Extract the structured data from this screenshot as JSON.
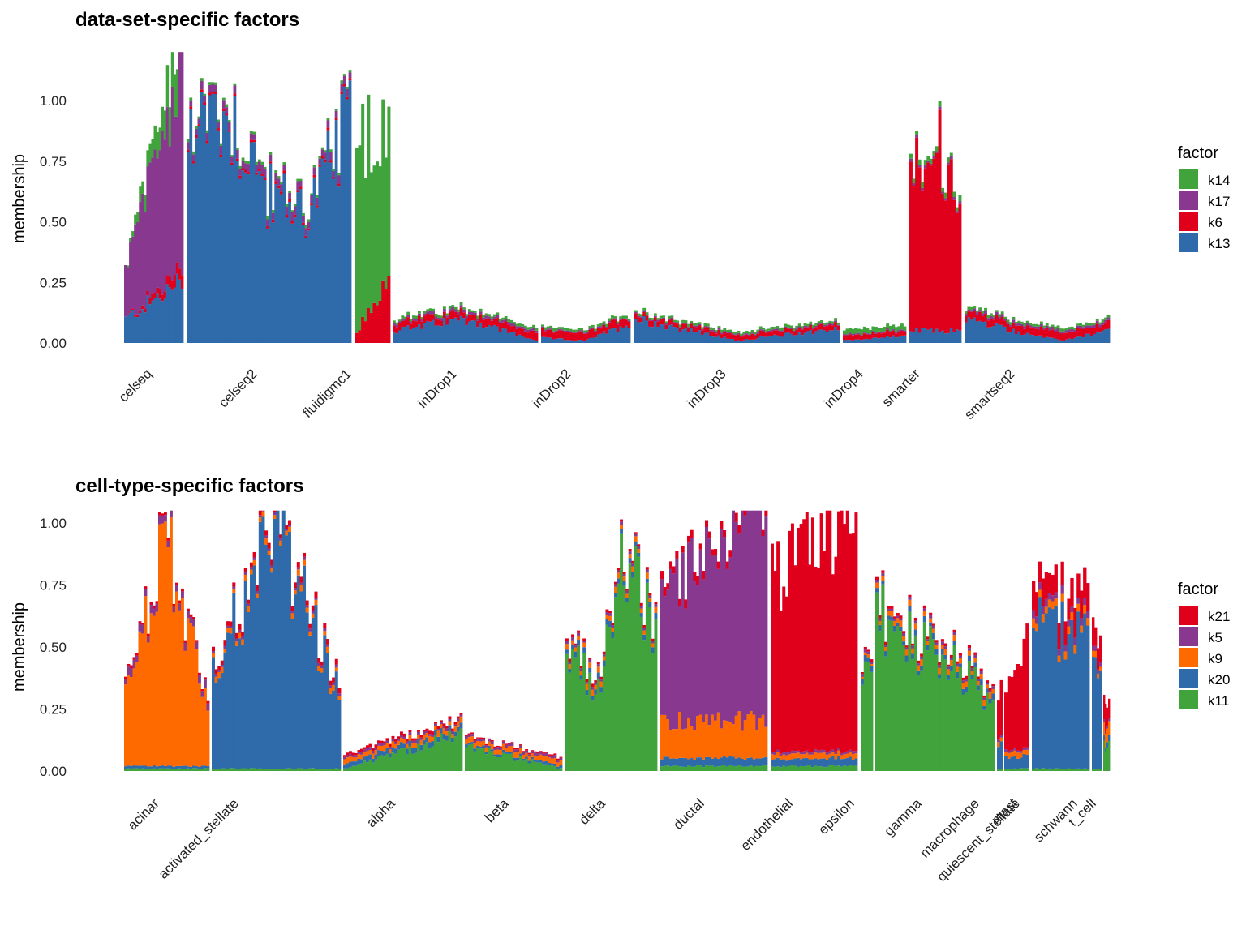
{
  "chart_data": [
    {
      "type": "bar",
      "stacked": true,
      "title": "data-set-specific factors",
      "xlabel": "",
      "ylabel": "membership",
      "ylim": [
        0,
        1.2
      ],
      "yticks": [
        "0.00",
        "0.25",
        "0.50",
        "0.75",
        "1.00"
      ],
      "ytick_values": [
        0,
        0.25,
        0.5,
        0.75,
        1.0
      ],
      "legend": {
        "title": "factor",
        "position": "right",
        "entries": [
          {
            "name": "k14",
            "color": "#41a33c"
          },
          {
            "name": "k17",
            "color": "#88388f"
          },
          {
            "name": "k6",
            "color": "#e0001c"
          },
          {
            "name": "k13",
            "color": "#2f6aab"
          }
        ]
      },
      "stack_order": [
        "k13",
        "k6",
        "k17",
        "k14"
      ],
      "groups": [
        {
          "name": "celseq",
          "bars": 24,
          "approx_profile": {
            "k13": [
              0.1,
              0.25
            ],
            "k6": [
              0.0,
              0.05
            ],
            "k17": [
              0.2,
              0.85
            ],
            "k14": [
              0.0,
              0.2
            ]
          }
        },
        {
          "name": "celseq2",
          "bars": 60,
          "approx_profile": {
            "k13": [
              0.93,
              0.95,
              0.6,
              0.55,
              0.9
            ],
            "k6": [
              0.01
            ],
            "k17": [
              0.03
            ],
            "k14": [
              0.01
            ]
          }
        },
        {
          "name": "fluidigmc1",
          "bars": 12,
          "approx_profile": {
            "k13": [
              0.0
            ],
            "k6": [
              0.05,
              0.25
            ],
            "k17": [
              0.0
            ],
            "k14": [
              0.8,
              0.65
            ]
          }
        },
        {
          "name": "inDrop1",
          "bars": 52,
          "approx_profile": {
            "k13": [
              0.05,
              0.1,
              0.01
            ],
            "k6": [
              0.03
            ],
            "k17": [
              0.01
            ],
            "k14": [
              0.01
            ]
          }
        },
        {
          "name": "inDrop2",
          "bars": 32,
          "approx_profile": {
            "k13": [
              0.02,
              0.01,
              0.08
            ],
            "k6": [
              0.03
            ],
            "k17": [
              0.005
            ],
            "k14": [
              0.01
            ]
          }
        },
        {
          "name": "inDrop3",
          "bars": 74,
          "approx_profile": {
            "k13": [
              0.1,
              0.01,
              0.06
            ],
            "k6": [
              0.02
            ],
            "k17": [
              0.005
            ],
            "k14": [
              0.01
            ]
          }
        },
        {
          "name": "inDrop4",
          "bars": 22,
          "approx_profile": {
            "k13": [
              0.01,
              0.03
            ],
            "k6": [
              0.02
            ],
            "k17": [
              0.005
            ],
            "k14": [
              0.02
            ]
          }
        },
        {
          "name": "smarter",
          "bars": 18,
          "approx_profile": {
            "k13": [
              0.05
            ],
            "k6": [
              0.65,
              0.8,
              0.5
            ],
            "k17": [
              0.01
            ],
            "k14": [
              0.02
            ]
          }
        },
        {
          "name": "smartseq2",
          "bars": 52,
          "approx_profile": {
            "k13": [
              0.1,
              0.05,
              0.01,
              0.05
            ],
            "k6": [
              0.03
            ],
            "k17": [
              0.01
            ],
            "k14": [
              0.01
            ]
          }
        }
      ]
    },
    {
      "type": "bar",
      "stacked": true,
      "title": "cell-type-specific factors",
      "xlabel": "",
      "ylabel": "membership",
      "ylim": [
        0,
        1.05
      ],
      "yticks": [
        "0.00",
        "0.25",
        "0.50",
        "0.75",
        "1.00"
      ],
      "ytick_values": [
        0,
        0.25,
        0.5,
        0.75,
        1.0
      ],
      "legend": {
        "title": "factor",
        "position": "right",
        "entries": [
          {
            "name": "k21",
            "color": "#e0001c"
          },
          {
            "name": "k5",
            "color": "#88388f"
          },
          {
            "name": "k9",
            "color": "#ff6a00"
          },
          {
            "name": "k20",
            "color": "#2f6aab"
          },
          {
            "name": "k11",
            "color": "#41a33c"
          }
        ]
      },
      "stack_order": [
        "k11",
        "k20",
        "k9",
        "k5",
        "k21"
      ],
      "groups": [
        {
          "name": "acinar",
          "bars": 30,
          "approx_profile": {
            "k11": [
              0.01
            ],
            "k20": [
              0.01
            ],
            "k9": [
              0.3,
              0.95,
              0.2
            ],
            "k5": [
              0.03
            ],
            "k21": [
              0.01
            ]
          }
        },
        {
          "name": "activated_stellate",
          "bars": 44,
          "approx_profile": {
            "k11": [
              0.01
            ],
            "k20": [
              0.4,
              0.95,
              0.3
            ],
            "k9": [
              0.02
            ],
            "k5": [
              0.01
            ],
            "k21": [
              0.02
            ]
          }
        },
        {
          "name": "alpha",
          "bars": 42,
          "approx_profile": {
            "k11": [
              0.01,
              0.15
            ],
            "k20": [
              0.02
            ],
            "k9": [
              0.02
            ],
            "k5": [
              0.01
            ],
            "k21": [
              0.01
            ]
          }
        },
        {
          "name": "beta",
          "bars": 34,
          "approx_profile": {
            "k11": [
              0.1,
              0.01
            ],
            "k20": [
              0.01
            ],
            "k9": [
              0.02
            ],
            "k5": [
              0.01
            ],
            "k21": [
              0.005
            ]
          }
        },
        {
          "name": "delta",
          "bars": 32,
          "approx_profile": {
            "k11": [
              0.55,
              0.3,
              0.9,
              0.55
            ],
            "k20": [
              0.02
            ],
            "k9": [
              0.02
            ],
            "k5": [
              0.01
            ],
            "k21": [
              0.01
            ]
          }
        },
        {
          "name": "ductal",
          "bars": 36,
          "approx_profile": {
            "k11": [
              0.02
            ],
            "k20": [
              0.03
            ],
            "k9": [
              0.15
            ],
            "k5": [
              0.5,
              0.9
            ],
            "k21": [
              0.03
            ]
          }
        },
        {
          "name": "endothelial",
          "bars": 30,
          "approx_profile": {
            "k11": [
              0.02
            ],
            "k20": [
              0.03
            ],
            "k9": [
              0.02
            ],
            "k5": [
              0.01
            ],
            "k21": [
              0.7,
              0.95
            ]
          }
        },
        {
          "name": "epsilon",
          "bars": 4,
          "approx_profile": {
            "k11": [
              0.4
            ],
            "k20": [
              0.02
            ],
            "k9": [
              0.01
            ],
            "k5": [
              0.01
            ],
            "k21": [
              0.01
            ]
          }
        },
        {
          "name": "gamma",
          "bars": 40,
          "approx_profile": {
            "k11": [
              0.62,
              0.3
            ],
            "k20": [
              0.02
            ],
            "k9": [
              0.02
            ],
            "k5": [
              0.01
            ],
            "k21": [
              0.01
            ]
          }
        },
        {
          "name": "macrophage",
          "bars": 2,
          "approx_profile": {
            "k11": [
              0.01
            ],
            "k20": [
              0.1
            ],
            "k9": [
              0.02
            ],
            "k5": [
              0.01
            ],
            "k21": [
              0.2
            ]
          }
        },
        {
          "name": "mast",
          "bars": 8,
          "approx_profile": {
            "k11": [
              0.01
            ],
            "k20": [
              0.05
            ],
            "k9": [
              0.02
            ],
            "k5": [
              0.01
            ],
            "k21": [
              0.25,
              0.4
            ]
          }
        },
        {
          "name": "quiescent_stellate",
          "bars": 18,
          "approx_profile": {
            "k11": [
              0.01
            ],
            "k20": [
              0.6,
              0.5
            ],
            "k9": [
              0.03
            ],
            "k5": [
              0.03
            ],
            "k21": [
              0.1
            ]
          }
        },
        {
          "name": "schwann",
          "bars": 4,
          "approx_profile": {
            "k11": [
              0.01
            ],
            "k20": [
              0.4
            ],
            "k9": [
              0.02
            ],
            "k5": [
              0.02
            ],
            "k21": [
              0.1
            ]
          }
        },
        {
          "name": "t_cell",
          "bars": 4,
          "approx_profile": {
            "k11": [
              0.1
            ],
            "k20": [
              0.02
            ],
            "k9": [
              0.05
            ],
            "k5": [
              0.01
            ],
            "k21": [
              0.1
            ]
          }
        }
      ]
    }
  ]
}
